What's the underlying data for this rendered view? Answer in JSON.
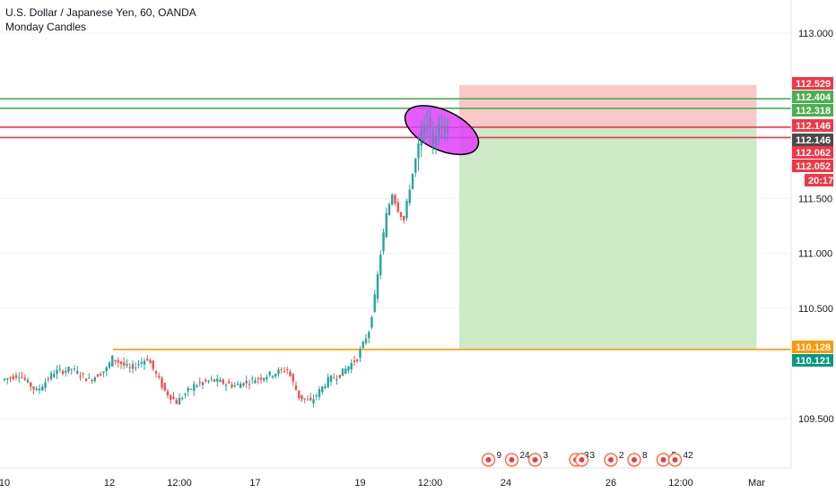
{
  "legend": {
    "title": "U.S. Dollar / Japanese Yen, 60, OANDA",
    "subtitle": "Monday Candles"
  },
  "chart_data": {
    "type": "candlestick",
    "symbol": "USDJPY",
    "ylim": [
      109.25,
      113.2
    ],
    "y_ticks": [
      {
        "value": 113.0,
        "label": "113.000"
      },
      {
        "value": 111.5,
        "label": "111.500"
      },
      {
        "value": 111.0,
        "label": "111.000"
      },
      {
        "value": 110.5,
        "label": "110.500"
      },
      {
        "value": 109.5,
        "label": "109.500"
      }
    ],
    "x_ticks": [
      {
        "label": "10",
        "bar": 0
      },
      {
        "label": "12",
        "bar": 18
      },
      {
        "label": "12:00",
        "bar": 30
      },
      {
        "label": "17",
        "bar": 43
      },
      {
        "label": "19",
        "bar": 61
      },
      {
        "label": "12:00",
        "bar": 73
      },
      {
        "label": "24",
        "bar": 86
      },
      {
        "label": "26",
        "bar": 104
      },
      {
        "label": "12:00",
        "bar": 116
      },
      {
        "label": "Mar",
        "bar": 129
      }
    ],
    "horizontal_lines": [
      {
        "name": "green-1",
        "value": 112.404,
        "color": "#4caf50"
      },
      {
        "name": "green-2",
        "value": 112.318,
        "color": "#4caf50"
      },
      {
        "name": "red-1",
        "value": 112.146,
        "color": "#f23645"
      },
      {
        "name": "red-2",
        "value": 112.052,
        "color": "#f23645"
      },
      {
        "name": "orange",
        "value": 110.128,
        "color": "#ff9800"
      }
    ],
    "position": {
      "type": "short",
      "stop": 112.529,
      "entry": 112.146,
      "target": 110.128
    },
    "price_tags": [
      {
        "label": "112.529",
        "value": 112.529,
        "color": "#f23645"
      },
      {
        "label": "112.404",
        "value": 112.404,
        "color": "#4caf50"
      },
      {
        "label": "112.318",
        "value": 112.318,
        "color": "#4caf50"
      },
      {
        "label": "112.146",
        "value": 112.146,
        "color": "#f23645"
      },
      {
        "label": "112.146",
        "value": 112.146,
        "color": "#4a4a4a"
      },
      {
        "label": "112.062",
        "value": 112.062,
        "color": "#f23645"
      },
      {
        "label": "112.052",
        "value": 112.052,
        "color": "#f23645"
      },
      {
        "label": "20:17",
        "value": 112.052,
        "color": "#f23645"
      },
      {
        "label": "110.128",
        "value": 110.128,
        "color": "#ff9800"
      },
      {
        "label": "110.121",
        "value": 110.121,
        "color": "#089981"
      }
    ],
    "events": [
      {
        "label": "9",
        "bar": 83
      },
      {
        "label": "24",
        "bar": 87
      },
      {
        "label": "3",
        "bar": 91
      },
      {
        "label": "3",
        "bar": 98
      },
      {
        "label": "3",
        "bar": 99
      },
      {
        "label": "2",
        "bar": 104
      },
      {
        "label": "8",
        "bar": 108
      },
      {
        "label": "5",
        "bar": 113
      },
      {
        "label": "42",
        "bar": 115
      }
    ],
    "candles_summary": "approximate hourly candles 0-76",
    "colors": {
      "up": "#26a69a",
      "down": "#ef5350",
      "grid": "#f0f3fa",
      "axis": "#e0e3eb",
      "ellipse_fill": "#e040fb",
      "stop_zone": "#f9c9c9",
      "target_zone": "#cdeac6"
    }
  }
}
